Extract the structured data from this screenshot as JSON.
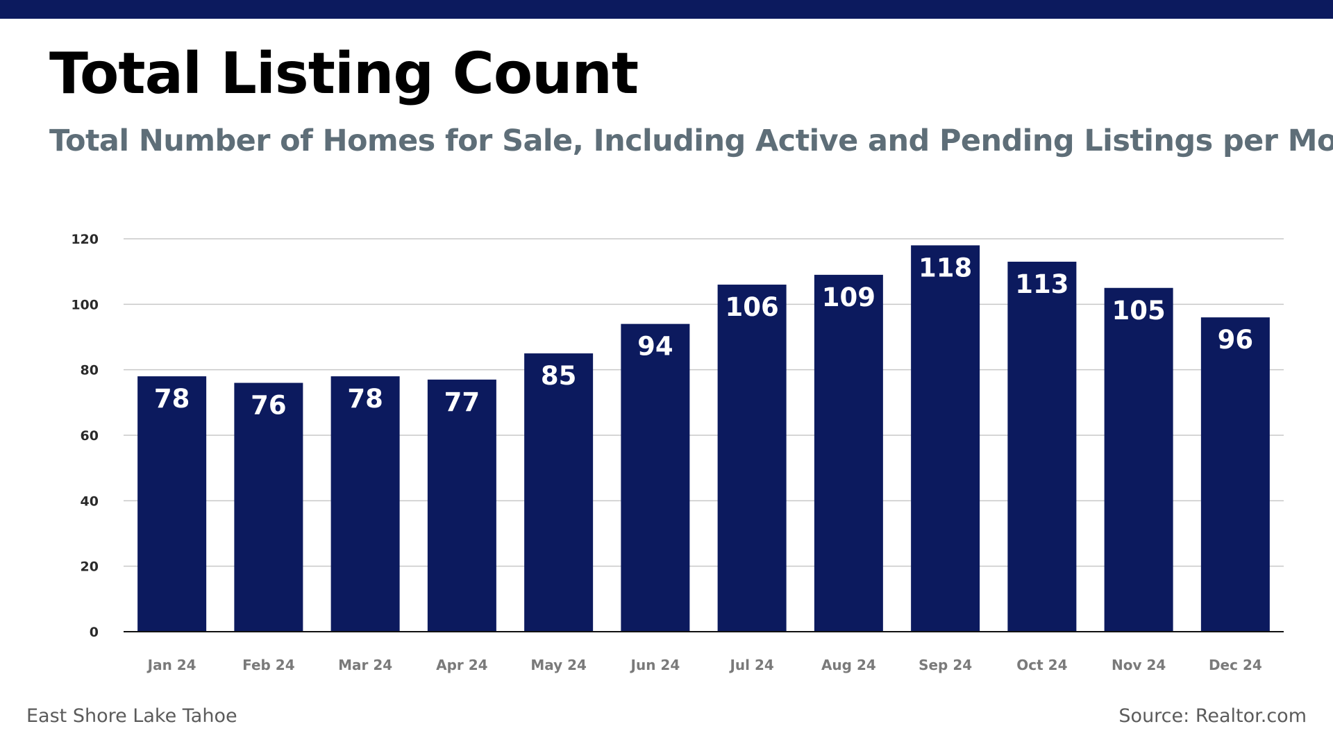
{
  "colors": {
    "accent": "#0c1a5e",
    "subtitle": "#5e6e78",
    "grid": "#c8c8c8",
    "axis_tick_text": "#2a2a2a",
    "category_text": "#7a7a7a",
    "bar_label": "#ffffff"
  },
  "header": {
    "title": "Total Listing Count",
    "subtitle": "Total Number of Homes for Sale, Including Active and Pending Listings per Month"
  },
  "footer": {
    "location": "East Shore Lake Tahoe",
    "source": "Source: Realtor.com"
  },
  "chart_data": {
    "type": "bar",
    "categories": [
      "Jan 24",
      "Feb 24",
      "Mar 24",
      "Apr 24",
      "May 24",
      "Jun 24",
      "Jul 24",
      "Aug 24",
      "Sep 24",
      "Oct 24",
      "Nov 24",
      "Dec 24"
    ],
    "values": [
      78,
      76,
      78,
      77,
      85,
      94,
      106,
      109,
      118,
      113,
      105,
      96
    ],
    "title": "Total Listing Count",
    "subtitle": "Total Number of Homes for Sale, Including Active and Pending Listings per Month",
    "xlabel": "",
    "ylabel": "",
    "ylim": [
      0,
      120
    ],
    "yticks": [
      0,
      20,
      40,
      60,
      80,
      100,
      120
    ],
    "grid": true,
    "data_labels": true,
    "legend": "none"
  }
}
